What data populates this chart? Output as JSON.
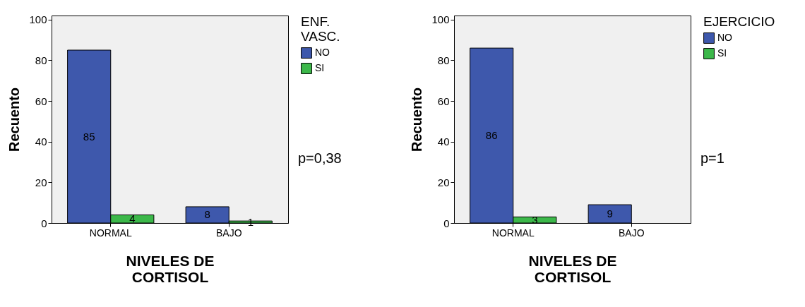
{
  "chart_data": [
    {
      "type": "bar",
      "categories": [
        "NORMAL",
        "BAJO"
      ],
      "xlabel": "NIVELES DE CORTISOL",
      "ylabel": "Recuento",
      "legend_title": "ENF. VASC.",
      "legend": "top right",
      "data_labels": true,
      "ylim": [
        0,
        102
      ],
      "yticks": [
        0,
        20,
        40,
        60,
        80,
        100
      ],
      "annotations": [
        "p=0,38"
      ],
      "series": [
        {
          "name": "NO",
          "color": "#3e58ac",
          "values": [
            85,
            8
          ]
        },
        {
          "name": "SI",
          "color": "#3cb84a",
          "values": [
            4,
            1
          ]
        }
      ]
    },
    {
      "type": "bar",
      "categories": [
        "NORMAL",
        "BAJO"
      ],
      "xlabel": "NIVELES DE CORTISOL",
      "ylabel": "Recuento",
      "legend_title": "EJERCICIO",
      "legend": "top right",
      "data_labels": true,
      "ylim": [
        0,
        102
      ],
      "yticks": [
        0,
        20,
        40,
        60,
        80,
        100
      ],
      "annotations": [
        "p=1"
      ],
      "series": [
        {
          "name": "NO",
          "color": "#3e58ac",
          "values": [
            86,
            9
          ]
        },
        {
          "name": "SI",
          "color": "#3cb84a",
          "values": [
            3,
            null
          ]
        }
      ]
    }
  ]
}
